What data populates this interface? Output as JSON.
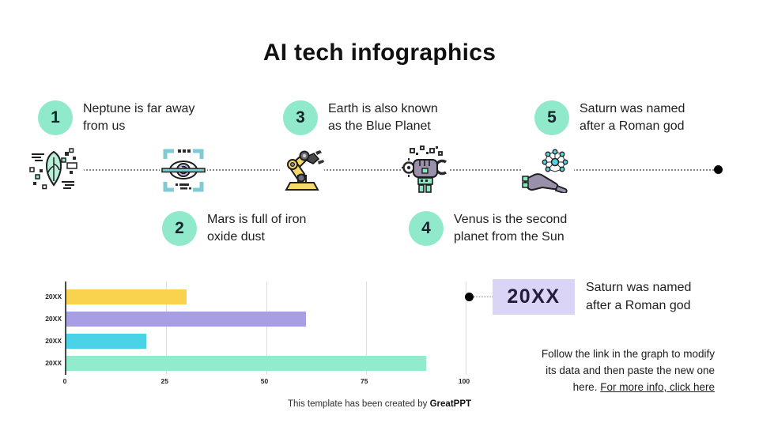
{
  "title": "AI tech infographics",
  "timeline": {
    "items": [
      {
        "number": "1",
        "text": "Neptune is far away\nfrom us"
      },
      {
        "number": "2",
        "text": "Mars is full of iron\noxide dust"
      },
      {
        "number": "3",
        "text": "Earth is also known\nas the Blue Planet"
      },
      {
        "number": "4",
        "text": "Venus is the second\nplanet from the Sun"
      },
      {
        "number": "5",
        "text": "Saturn was named\nafter a Roman god"
      }
    ],
    "icons": [
      "digital-leaf-icon",
      "eye-scan-icon",
      "robot-arm-icon",
      "ai-fist-icon",
      "hand-network-icon"
    ]
  },
  "chart_data": {
    "type": "bar",
    "orientation": "horizontal",
    "categories": [
      "20XX",
      "20XX",
      "20XX",
      "20XX"
    ],
    "values": [
      30,
      60,
      20,
      90
    ],
    "colors": [
      "#F9D24E",
      "#A79EE3",
      "#4AD2E6",
      "#93EBCD"
    ],
    "title": "",
    "xlabel": "",
    "ylabel": "",
    "xlim": [
      0,
      100
    ],
    "xticks": [
      0,
      25,
      50,
      75,
      100
    ],
    "grid": true,
    "legend": false
  },
  "callout": {
    "year": "20XX",
    "text": "Saturn was named\nafter a Roman god"
  },
  "note": {
    "line1": "Follow the link in the graph to modify",
    "line2": "its data and then paste the new one",
    "line3_prefix": "here. ",
    "link_label": "For more info, click here"
  },
  "footer": {
    "prefix": "This template has been created by ",
    "brand": "GreatPPT"
  },
  "colors": {
    "accent_mint": "#90E9CA",
    "lavender": "#DAD4F6",
    "bar_yellow": "#F9D24E",
    "bar_purple": "#A79EE3",
    "bar_cyan": "#4AD2E6",
    "bar_mint": "#93EBCD",
    "dot_black": "#000000"
  }
}
